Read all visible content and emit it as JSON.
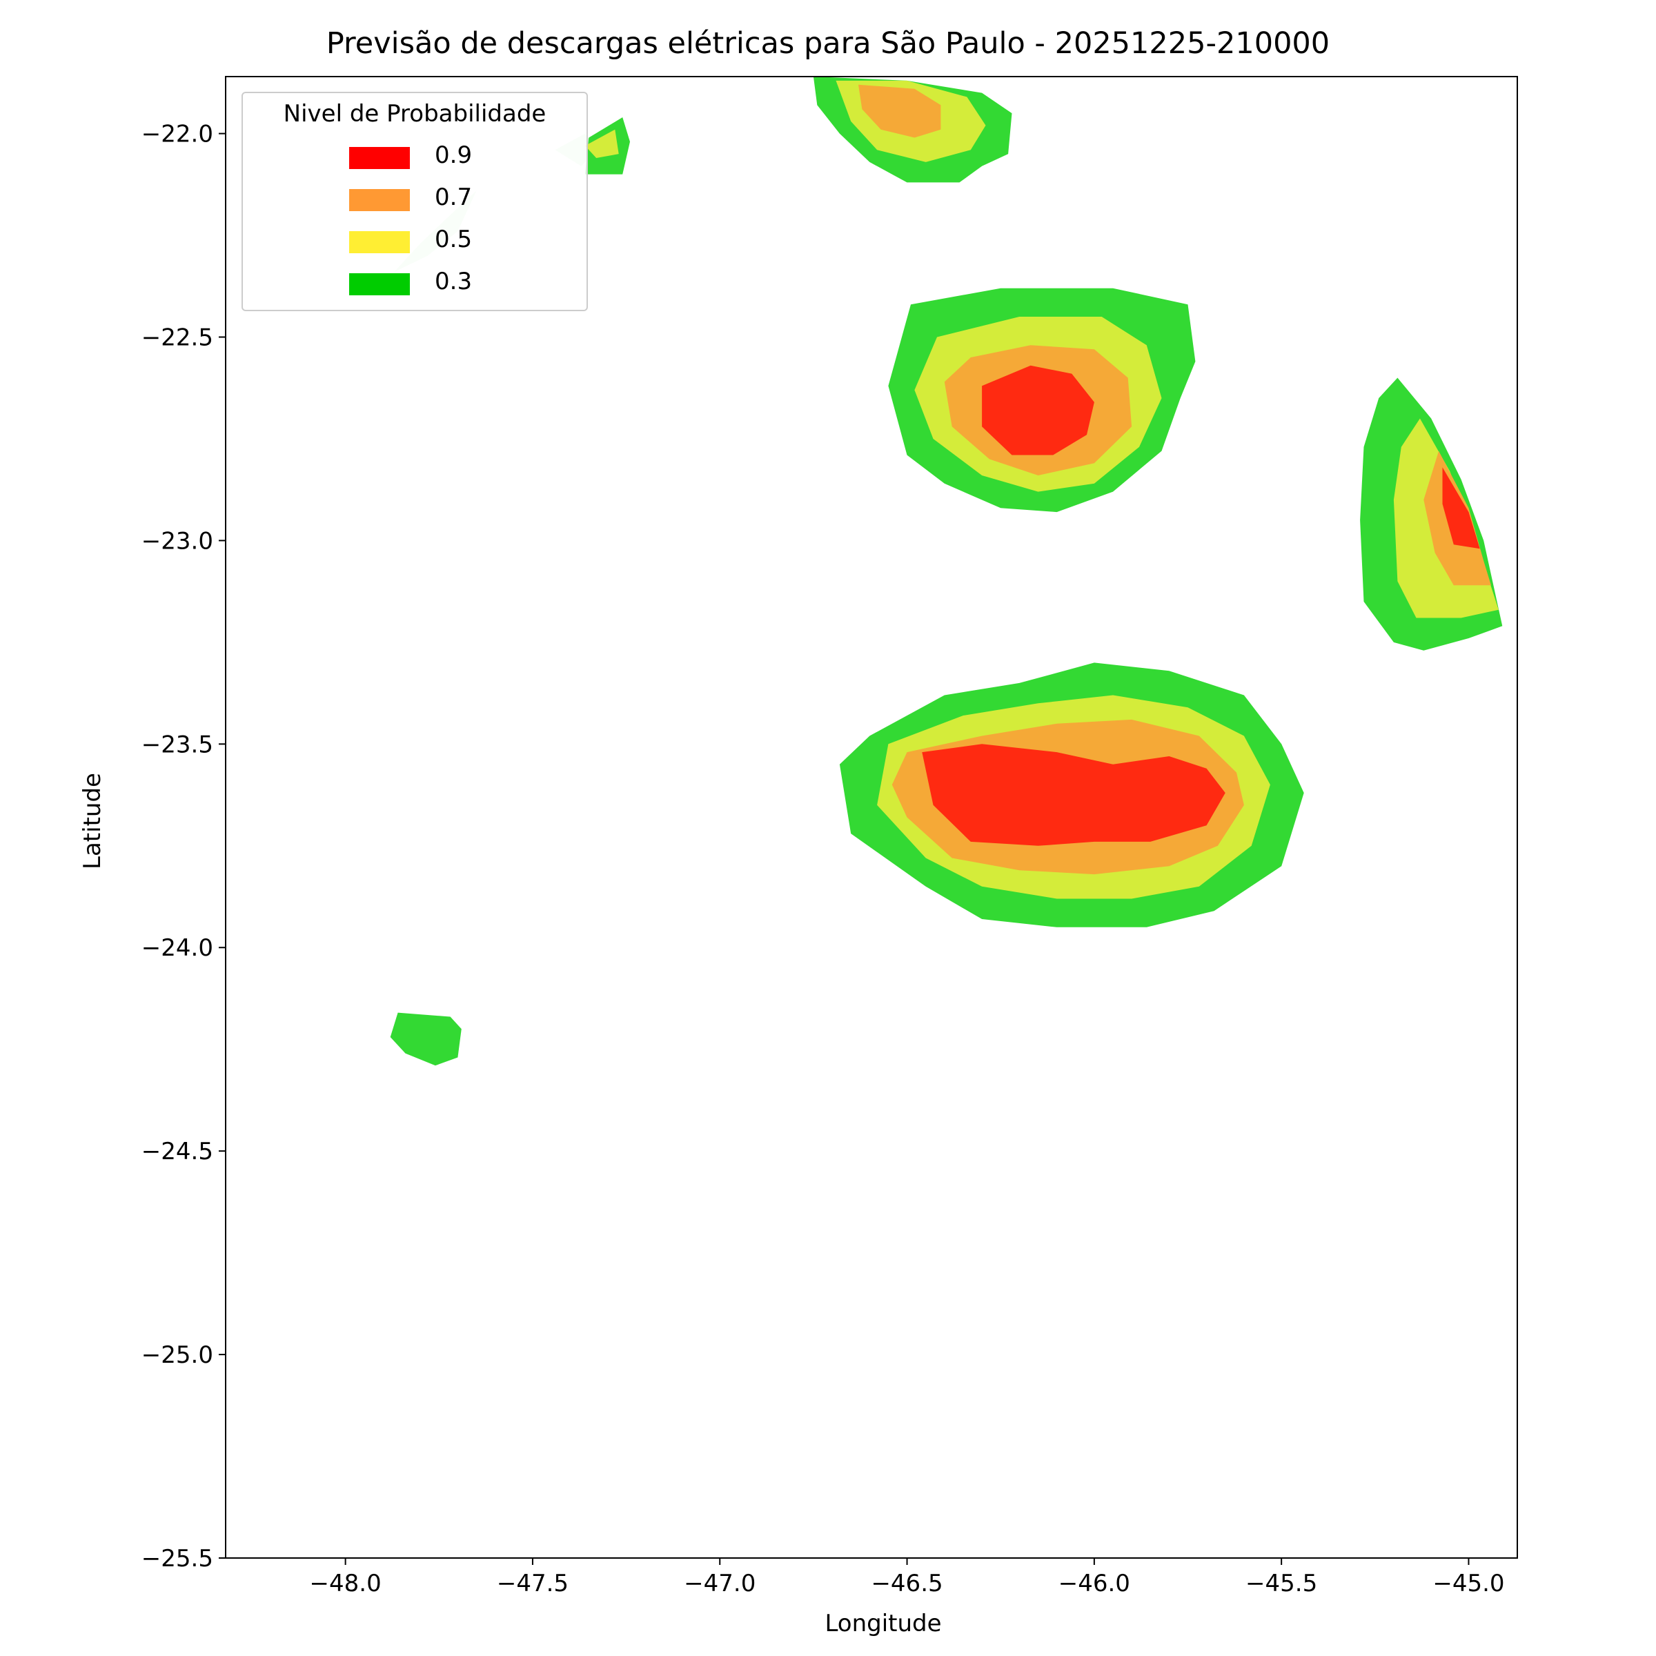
{
  "title": "Previsão de descargas elétricas para São Paulo - 20251225-210000",
  "chart_data": {
    "type": "contour",
    "title": "Previsão de descargas elétricas para São Paulo - 20251225-210000",
    "xlabel": "Longitude",
    "ylabel": "Latitude",
    "xlim": [
      -48.32,
      -44.87
    ],
    "ylim": [
      -25.5,
      -21.86
    ],
    "xticks": [
      -48.0,
      -47.5,
      -47.0,
      -46.5,
      -46.0,
      -45.5,
      -45.0
    ],
    "yticks": [
      -22.0,
      -22.5,
      -23.0,
      -23.5,
      -24.0,
      -24.5,
      -25.0,
      -25.5
    ],
    "xtick_labels": [
      "−48.0",
      "−47.5",
      "−47.0",
      "−46.5",
      "−46.0",
      "−45.5",
      "−45.0"
    ],
    "ytick_labels": [
      "−22.0",
      "−22.5",
      "−23.0",
      "−23.5",
      "−24.0",
      "−24.5",
      "−25.0",
      "−25.5"
    ],
    "grid": false,
    "legend": {
      "title": "Nivel de Probabilidade",
      "placement": "top-left",
      "entries": [
        {
          "label": "0.9",
          "color": "#ff0000"
        },
        {
          "label": "0.7",
          "color": "#ff9933"
        },
        {
          "label": "0.5",
          "color": "#ffee33"
        },
        {
          "label": "0.3",
          "color": "#00cc00"
        }
      ]
    },
    "cells": [
      {
        "name": "north",
        "levels": [
          {
            "p": 0.3,
            "color": "#33d933",
            "points": [
              [
                -46.75,
                -21.86
              ],
              [
                -46.5,
                -21.87
              ],
              [
                -46.3,
                -21.9
              ],
              [
                -46.22,
                -21.95
              ],
              [
                -46.23,
                -22.05
              ],
              [
                -46.3,
                -22.08
              ],
              [
                -46.36,
                -22.12
              ],
              [
                -46.5,
                -22.12
              ],
              [
                -46.6,
                -22.07
              ],
              [
                -46.68,
                -22.0
              ],
              [
                -46.74,
                -21.93
              ]
            ]
          },
          {
            "p": 0.5,
            "color": "#d4ec3a",
            "points": [
              [
                -46.69,
                -21.87
              ],
              [
                -46.5,
                -21.87
              ],
              [
                -46.34,
                -21.91
              ],
              [
                -46.29,
                -21.98
              ],
              [
                -46.33,
                -22.04
              ],
              [
                -46.45,
                -22.07
              ],
              [
                -46.58,
                -22.04
              ],
              [
                -46.65,
                -21.97
              ]
            ]
          },
          {
            "p": 0.7,
            "color": "#f5a937",
            "points": [
              [
                -46.63,
                -21.88
              ],
              [
                -46.48,
                -21.89
              ],
              [
                -46.41,
                -21.93
              ],
              [
                -46.41,
                -21.99
              ],
              [
                -46.48,
                -22.01
              ],
              [
                -46.57,
                -21.99
              ],
              [
                -46.62,
                -21.94
              ]
            ]
          }
        ]
      },
      {
        "name": "north-central",
        "levels": [
          {
            "p": 0.3,
            "color": "#33d933",
            "points": [
              [
                -46.49,
                -22.42
              ],
              [
                -46.25,
                -22.38
              ],
              [
                -45.95,
                -22.38
              ],
              [
                -45.75,
                -22.42
              ],
              [
                -45.73,
                -22.56
              ],
              [
                -45.77,
                -22.65
              ],
              [
                -45.82,
                -22.78
              ],
              [
                -45.95,
                -22.88
              ],
              [
                -46.1,
                -22.93
              ],
              [
                -46.25,
                -22.92
              ],
              [
                -46.4,
                -22.86
              ],
              [
                -46.5,
                -22.79
              ],
              [
                -46.55,
                -22.62
              ]
            ]
          },
          {
            "p": 0.5,
            "color": "#d4ec3a",
            "points": [
              [
                -46.42,
                -22.5
              ],
              [
                -46.2,
                -22.45
              ],
              [
                -45.98,
                -22.45
              ],
              [
                -45.86,
                -22.52
              ],
              [
                -45.82,
                -22.65
              ],
              [
                -45.88,
                -22.77
              ],
              [
                -46.0,
                -22.86
              ],
              [
                -46.15,
                -22.88
              ],
              [
                -46.3,
                -22.84
              ],
              [
                -46.43,
                -22.75
              ],
              [
                -46.48,
                -22.63
              ]
            ]
          },
          {
            "p": 0.7,
            "color": "#f5a937",
            "points": [
              [
                -46.33,
                -22.55
              ],
              [
                -46.17,
                -22.52
              ],
              [
                -46.0,
                -22.53
              ],
              [
                -45.91,
                -22.6
              ],
              [
                -45.9,
                -22.72
              ],
              [
                -46.0,
                -22.81
              ],
              [
                -46.15,
                -22.84
              ],
              [
                -46.28,
                -22.8
              ],
              [
                -46.38,
                -22.72
              ],
              [
                -46.4,
                -22.61
              ]
            ]
          },
          {
            "p": 0.9,
            "color": "#ff2a11",
            "points": [
              [
                -46.3,
                -22.62
              ],
              [
                -46.17,
                -22.57
              ],
              [
                -46.06,
                -22.59
              ],
              [
                -46.0,
                -22.66
              ],
              [
                -46.02,
                -22.74
              ],
              [
                -46.11,
                -22.79
              ],
              [
                -46.22,
                -22.79
              ],
              [
                -46.3,
                -22.72
              ]
            ]
          }
        ]
      },
      {
        "name": "east",
        "levels": [
          {
            "p": 0.3,
            "color": "#33d933",
            "points": [
              [
                -45.19,
                -22.6
              ],
              [
                -45.1,
                -22.7
              ],
              [
                -45.02,
                -22.85
              ],
              [
                -44.96,
                -23.0
              ],
              [
                -44.91,
                -23.21
              ],
              [
                -45.0,
                -23.24
              ],
              [
                -45.12,
                -23.27
              ],
              [
                -45.2,
                -23.25
              ],
              [
                -45.28,
                -23.15
              ],
              [
                -45.29,
                -22.95
              ],
              [
                -45.28,
                -22.77
              ],
              [
                -45.24,
                -22.65
              ]
            ]
          },
          {
            "p": 0.5,
            "color": "#d4ec3a",
            "points": [
              [
                -45.13,
                -22.7
              ],
              [
                -45.05,
                -22.83
              ],
              [
                -44.98,
                -23.0
              ],
              [
                -44.92,
                -23.17
              ],
              [
                -45.02,
                -23.19
              ],
              [
                -45.14,
                -23.19
              ],
              [
                -45.19,
                -23.1
              ],
              [
                -45.2,
                -22.9
              ],
              [
                -45.18,
                -22.77
              ]
            ]
          },
          {
            "p": 0.7,
            "color": "#f5a937",
            "points": [
              [
                -45.08,
                -22.78
              ],
              [
                -45.0,
                -22.92
              ],
              [
                -44.96,
                -23.05
              ],
              [
                -44.94,
                -23.11
              ],
              [
                -45.04,
                -23.11
              ],
              [
                -45.09,
                -23.03
              ],
              [
                -45.12,
                -22.9
              ]
            ]
          },
          {
            "p": 0.9,
            "color": "#ff2a11",
            "points": [
              [
                -45.07,
                -22.82
              ],
              [
                -45.0,
                -22.93
              ],
              [
                -44.97,
                -23.02
              ],
              [
                -45.04,
                -23.01
              ],
              [
                -45.07,
                -22.91
              ]
            ]
          }
        ]
      },
      {
        "name": "south-central",
        "levels": [
          {
            "p": 0.3,
            "color": "#33d933",
            "points": [
              [
                -46.6,
                -23.48
              ],
              [
                -46.4,
                -23.38
              ],
              [
                -46.2,
                -23.35
              ],
              [
                -46.0,
                -23.3
              ],
              [
                -45.8,
                -23.32
              ],
              [
                -45.6,
                -23.38
              ],
              [
                -45.5,
                -23.5
              ],
              [
                -45.44,
                -23.62
              ],
              [
                -45.5,
                -23.8
              ],
              [
                -45.68,
                -23.91
              ],
              [
                -45.86,
                -23.95
              ],
              [
                -46.1,
                -23.95
              ],
              [
                -46.3,
                -23.93
              ],
              [
                -46.45,
                -23.85
              ],
              [
                -46.65,
                -23.72
              ],
              [
                -46.68,
                -23.55
              ]
            ]
          },
          {
            "p": 0.5,
            "color": "#d4ec3a",
            "points": [
              [
                -46.55,
                -23.5
              ],
              [
                -46.35,
                -23.43
              ],
              [
                -46.15,
                -23.4
              ],
              [
                -45.95,
                -23.38
              ],
              [
                -45.75,
                -23.41
              ],
              [
                -45.6,
                -23.48
              ],
              [
                -45.53,
                -23.6
              ],
              [
                -45.58,
                -23.75
              ],
              [
                -45.72,
                -23.85
              ],
              [
                -45.9,
                -23.88
              ],
              [
                -46.1,
                -23.88
              ],
              [
                -46.3,
                -23.85
              ],
              [
                -46.45,
                -23.78
              ],
              [
                -46.58,
                -23.65
              ]
            ]
          },
          {
            "p": 0.7,
            "color": "#f5a937",
            "points": [
              [
                -46.5,
                -23.52
              ],
              [
                -46.3,
                -23.48
              ],
              [
                -46.1,
                -23.45
              ],
              [
                -45.9,
                -23.44
              ],
              [
                -45.72,
                -23.48
              ],
              [
                -45.62,
                -23.57
              ],
              [
                -45.6,
                -23.65
              ],
              [
                -45.67,
                -23.75
              ],
              [
                -45.8,
                -23.8
              ],
              [
                -46.0,
                -23.82
              ],
              [
                -46.2,
                -23.81
              ],
              [
                -46.38,
                -23.78
              ],
              [
                -46.5,
                -23.68
              ],
              [
                -46.54,
                -23.6
              ]
            ]
          },
          {
            "p": 0.9,
            "color": "#ff2a11",
            "points": [
              [
                -46.46,
                -23.52
              ],
              [
                -46.3,
                -23.5
              ],
              [
                -46.1,
                -23.52
              ],
              [
                -45.95,
                -23.55
              ],
              [
                -45.8,
                -23.53
              ],
              [
                -45.7,
                -23.56
              ],
              [
                -45.65,
                -23.62
              ],
              [
                -45.7,
                -23.7
              ],
              [
                -45.85,
                -23.74
              ],
              [
                -46.0,
                -23.74
              ],
              [
                -46.15,
                -23.75
              ],
              [
                -46.33,
                -23.74
              ],
              [
                -46.43,
                -23.65
              ]
            ]
          }
        ]
      },
      {
        "name": "northwest",
        "levels": [
          {
            "p": 0.3,
            "color": "#d4f5d4",
            "points": [
              [
                -47.44,
                -22.04
              ],
              [
                -47.36,
                -22.0
              ],
              [
                -47.33,
                -22.04
              ],
              [
                -47.37,
                -22.08
              ]
            ]
          },
          {
            "p": 0.3,
            "color": "#d4f5d4",
            "points": [
              [
                -47.65,
                -22.14
              ],
              [
                -47.72,
                -22.2
              ],
              [
                -47.8,
                -22.27
              ],
              [
                -47.87,
                -22.34
              ],
              [
                -47.78,
                -22.3
              ],
              [
                -47.7,
                -22.24
              ]
            ]
          },
          {
            "p": 0.3,
            "color": "#33d933",
            "points": [
              [
                -47.35,
                -22.01
              ],
              [
                -47.26,
                -21.96
              ],
              [
                -47.24,
                -22.02
              ],
              [
                -47.26,
                -22.1
              ],
              [
                -47.36,
                -22.1
              ]
            ]
          },
          {
            "p": 0.5,
            "color": "#d4ec3a",
            "points": [
              [
                -47.36,
                -22.03
              ],
              [
                -47.28,
                -21.99
              ],
              [
                -47.27,
                -22.05
              ],
              [
                -47.33,
                -22.06
              ]
            ]
          }
        ]
      },
      {
        "name": "southwest",
        "levels": [
          {
            "p": 0.3,
            "color": "#33d933",
            "points": [
              [
                -47.86,
                -24.16
              ],
              [
                -47.72,
                -24.17
              ],
              [
                -47.69,
                -24.2
              ],
              [
                -47.7,
                -24.27
              ],
              [
                -47.76,
                -24.29
              ],
              [
                -47.84,
                -24.26
              ],
              [
                -47.88,
                -24.22
              ]
            ]
          }
        ]
      }
    ]
  }
}
